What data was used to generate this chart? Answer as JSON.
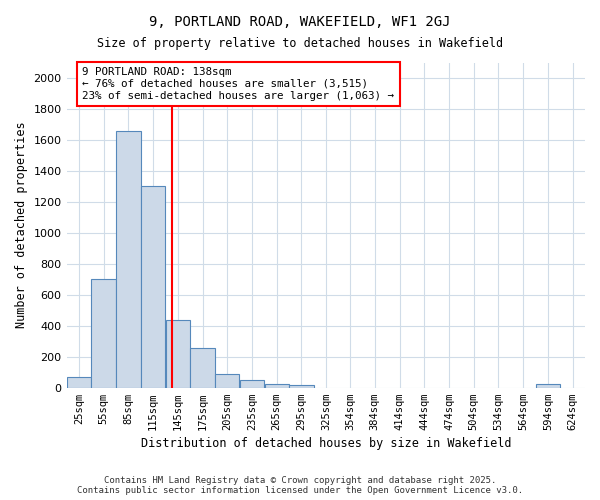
{
  "title1": "9, PORTLAND ROAD, WAKEFIELD, WF1 2GJ",
  "title2": "Size of property relative to detached houses in Wakefield",
  "xlabel": "Distribution of detached houses by size in Wakefield",
  "ylabel": "Number of detached properties",
  "bin_edges": [
    10,
    40,
    70,
    100,
    130,
    160,
    190,
    220,
    250,
    280,
    310,
    339,
    369,
    399,
    429,
    459,
    489,
    519,
    549,
    579,
    609,
    639
  ],
  "bar_heights": [
    70,
    700,
    1655,
    1305,
    440,
    255,
    90,
    50,
    25,
    20,
    0,
    0,
    0,
    0,
    0,
    0,
    0,
    0,
    0,
    22,
    0
  ],
  "bar_facecolor": "#ccd9e8",
  "bar_edgecolor": "#5588bb",
  "vline_x": 138,
  "vline_color": "red",
  "ylim": [
    0,
    2100
  ],
  "yticks": [
    0,
    200,
    400,
    600,
    800,
    1000,
    1200,
    1400,
    1600,
    1800,
    2000
  ],
  "xtick_labels": [
    "25sqm",
    "55sqm",
    "85sqm",
    "115sqm",
    "145sqm",
    "175sqm",
    "205sqm",
    "235sqm",
    "265sqm",
    "295sqm",
    "325sqm",
    "354sqm",
    "384sqm",
    "414sqm",
    "444sqm",
    "474sqm",
    "504sqm",
    "534sqm",
    "564sqm",
    "594sqm",
    "624sqm"
  ],
  "xtick_positions": [
    25,
    55,
    85,
    115,
    145,
    175,
    205,
    235,
    265,
    295,
    325,
    354,
    384,
    414,
    444,
    474,
    504,
    534,
    564,
    594,
    624
  ],
  "annotation_lines": [
    "9 PORTLAND ROAD: 138sqm",
    "← 76% of detached houses are smaller (3,515)",
    "23% of semi-detached houses are larger (1,063) →"
  ],
  "annotation_box_color": "red",
  "annotation_box_facecolor": "white",
  "footer1": "Contains HM Land Registry data © Crown copyright and database right 2025.",
  "footer2": "Contains public sector information licensed under the Open Government Licence v3.0.",
  "bg_color": "#ffffff",
  "grid_color": "#d0dce8"
}
